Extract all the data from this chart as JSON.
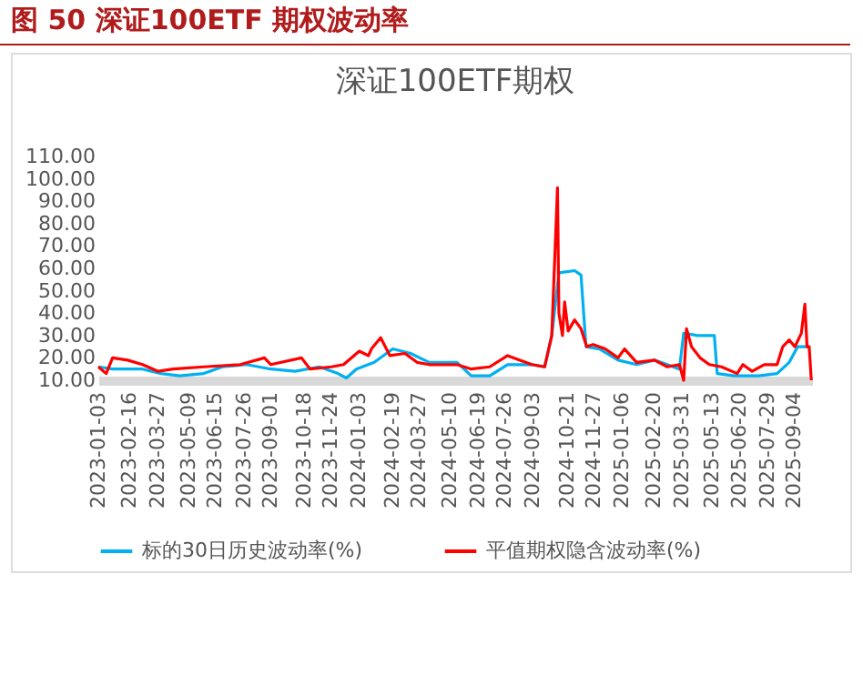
{
  "chart_data": {
    "type": "line",
    "title": "图 50 深证100ETF 期权波动率",
    "subtitle": "深证100ETF期权",
    "xlim": [
      "2023-01-03",
      "2025-09-30"
    ],
    "xticks": [
      "2023-01-03",
      "2023-02-16",
      "2023-03-27",
      "2023-05-09",
      "2023-06-15",
      "2023-07-26",
      "2023-09-01",
      "2023-10-18",
      "2023-11-24",
      "2024-01-03",
      "2024-02-19",
      "2024-03-27",
      "2024-05-10",
      "2024-06-19",
      "2024-07-26",
      "2024-09-03",
      "2024-10-21",
      "2024-11-27",
      "2025-01-06",
      "2025-02-20",
      "2025-03-31",
      "2025-05-13",
      "2025-06-20",
      "2025-07-29",
      "2025-09-04"
    ],
    "ylim": [
      10,
      110
    ],
    "yticks": [
      {
        "value": 10,
        "label": "10.00"
      },
      {
        "value": 20,
        "label": "20.00"
      },
      {
        "value": 30,
        "label": "30.00"
      },
      {
        "value": 40,
        "label": "40.00"
      },
      {
        "value": 50,
        "label": "50.00"
      },
      {
        "value": 60,
        "label": "60.00"
      },
      {
        "value": 70,
        "label": "70.00"
      },
      {
        "value": 80,
        "label": "80.00"
      },
      {
        "value": 90,
        "label": "90.00"
      },
      {
        "value": 100,
        "label": "100.00"
      },
      {
        "value": 110,
        "label": "110.00"
      }
    ],
    "grid": false,
    "legend": "bottom",
    "line_style": "solid",
    "series": [
      {
        "name": "标的30日历史波动率(%)",
        "color": "#00b0f0",
        "x": [
          "2023-01-03",
          "2023-01-23",
          "2023-03-06",
          "2023-04-01",
          "2023-04-27",
          "2023-05-31",
          "2023-06-26",
          "2023-07-30",
          "2023-09-02",
          "2023-10-06",
          "2023-11-09",
          "2023-12-05",
          "2023-12-17",
          "2023-12-31",
          "2024-01-25",
          "2024-02-20",
          "2024-03-16",
          "2024-04-11",
          "2024-05-20",
          "2024-06-09",
          "2024-07-05",
          "2024-07-30",
          "2024-09-02",
          "2024-09-20",
          "2024-09-30",
          "2024-10-10",
          "2024-11-01",
          "2024-11-10",
          "2024-11-17",
          "2024-12-06",
          "2025-01-01",
          "2025-01-27",
          "2025-02-21",
          "2025-03-11",
          "2025-03-28",
          "2025-04-03",
          "2025-04-22",
          "2025-05-16",
          "2025-05-20",
          "2025-06-13",
          "2025-07-17",
          "2025-08-12",
          "2025-08-29",
          "2025-09-10",
          "2025-09-26"
        ],
        "values": [
          16,
          15,
          15,
          13,
          12,
          13,
          16,
          17,
          15,
          14,
          16,
          13,
          11,
          15,
          18,
          24,
          22,
          18,
          18,
          12,
          12,
          17,
          17,
          16,
          30,
          58,
          59,
          57,
          25,
          24,
          19,
          17,
          19,
          17,
          15,
          31,
          30,
          30,
          13,
          12,
          12,
          13,
          18,
          25,
          25
        ]
      },
      {
        "name": "平值期权隐含波动率(%)",
        "color": "#ff0000",
        "x": [
          "2023-01-03",
          "2023-01-14",
          "2023-01-23",
          "2023-02-13",
          "2023-03-06",
          "2023-03-28",
          "2023-04-18",
          "2023-05-31",
          "2023-07-21",
          "2023-08-24",
          "2023-09-02",
          "2023-10-15",
          "2023-10-27",
          "2023-11-26",
          "2023-12-13",
          "2024-01-04",
          "2024-01-17",
          "2024-01-21",
          "2024-02-03",
          "2024-02-16",
          "2024-03-08",
          "2024-03-25",
          "2024-04-11",
          "2024-05-20",
          "2024-06-09",
          "2024-07-05",
          "2024-07-30",
          "2024-09-02",
          "2024-09-20",
          "2024-09-30",
          "2024-10-08",
          "2024-10-10",
          "2024-10-15",
          "2024-10-18",
          "2024-10-23",
          "2024-11-01",
          "2024-11-10",
          "2024-11-18",
          "2024-11-27",
          "2024-12-14",
          "2025-01-01",
          "2025-01-10",
          "2025-01-27",
          "2025-02-21",
          "2025-03-11",
          "2025-03-28",
          "2025-04-03",
          "2025-04-07",
          "2025-04-14",
          "2025-04-26",
          "2025-05-09",
          "2025-05-26",
          "2025-06-17",
          "2025-06-25",
          "2025-07-08",
          "2025-07-25",
          "2025-08-12",
          "2025-08-20",
          "2025-08-29",
          "2025-09-06",
          "2025-09-15",
          "2025-09-20",
          "2025-09-23",
          "2025-09-26",
          "2025-09-29"
        ],
        "values": [
          16,
          13,
          20,
          19,
          17,
          14,
          15,
          16,
          17,
          20,
          17,
          20,
          15,
          16,
          17,
          23,
          21,
          24,
          29,
          21,
          22,
          18,
          17,
          17,
          15,
          16,
          21,
          17,
          16,
          30,
          96,
          40,
          30,
          45,
          32,
          37,
          33,
          25,
          26,
          24,
          20,
          24,
          18,
          19,
          16,
          17,
          10,
          33,
          25,
          20,
          17,
          16,
          13,
          17,
          14,
          17,
          17,
          25,
          28,
          25,
          31,
          44,
          25,
          25,
          10
        ]
      }
    ]
  }
}
